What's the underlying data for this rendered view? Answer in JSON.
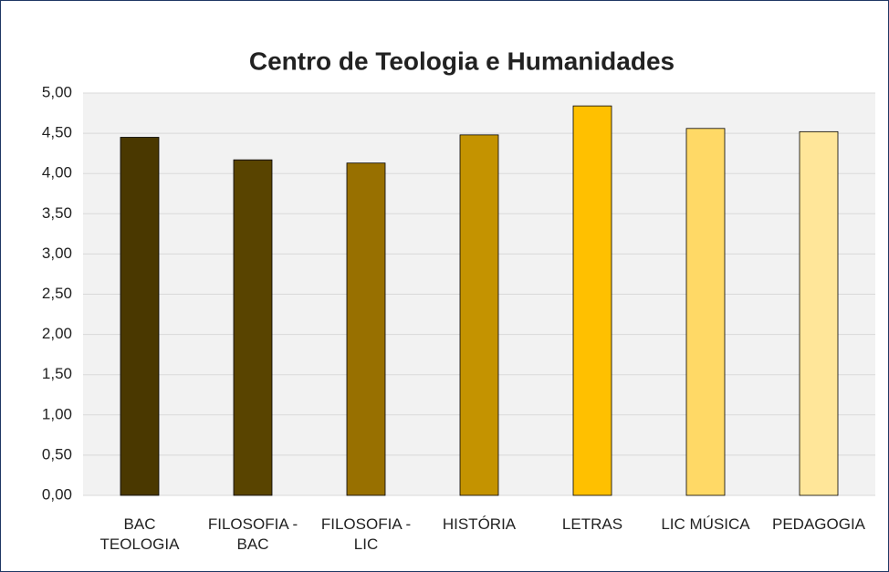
{
  "chart_data": {
    "type": "bar",
    "title": "Centro de Teologia e Humanidades",
    "categories": [
      "BAC TEOLOGIA",
      "FILOSOFIA - BAC",
      "FILOSOFIA - LIC",
      "HISTÓRIA",
      "LETRAS",
      "LIC MÚSICA",
      "PEDAGOGIA"
    ],
    "values": [
      4.45,
      4.17,
      4.13,
      4.48,
      4.84,
      4.56,
      4.52
    ],
    "colors": [
      "#4a3800",
      "#594400",
      "#987000",
      "#c49300",
      "#ffc000",
      "#ffd966",
      "#ffe699"
    ],
    "ylim": [
      0,
      5
    ],
    "yticks": [
      {
        "value": 0,
        "label": "0,00"
      },
      {
        "value": 0.5,
        "label": "0,50"
      },
      {
        "value": 1,
        "label": "1,00"
      },
      {
        "value": 1.5,
        "label": "1,50"
      },
      {
        "value": 2,
        "label": "2,00"
      },
      {
        "value": 2.5,
        "label": "2,50"
      },
      {
        "value": 3,
        "label": "3,00"
      },
      {
        "value": 3.5,
        "label": "3,50"
      },
      {
        "value": 4,
        "label": "4,00"
      },
      {
        "value": 4.5,
        "label": "4,50"
      },
      {
        "value": 5,
        "label": "5,00"
      }
    ],
    "grid": true
  }
}
